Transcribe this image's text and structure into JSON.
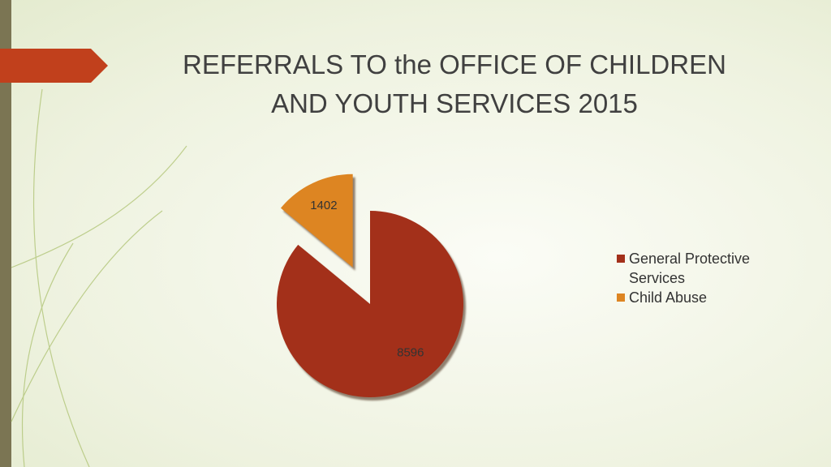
{
  "chart_data": {
    "type": "pie",
    "title": "REFERRALS TO the OFFICE OF CHILDREN AND YOUTH SERVICES 2015",
    "categories": [
      "General Protective Services",
      "Child Abuse"
    ],
    "values": [
      8596,
      1402
    ],
    "colors": [
      "#a3301a",
      "#dd8522"
    ],
    "legend": "right"
  }
}
